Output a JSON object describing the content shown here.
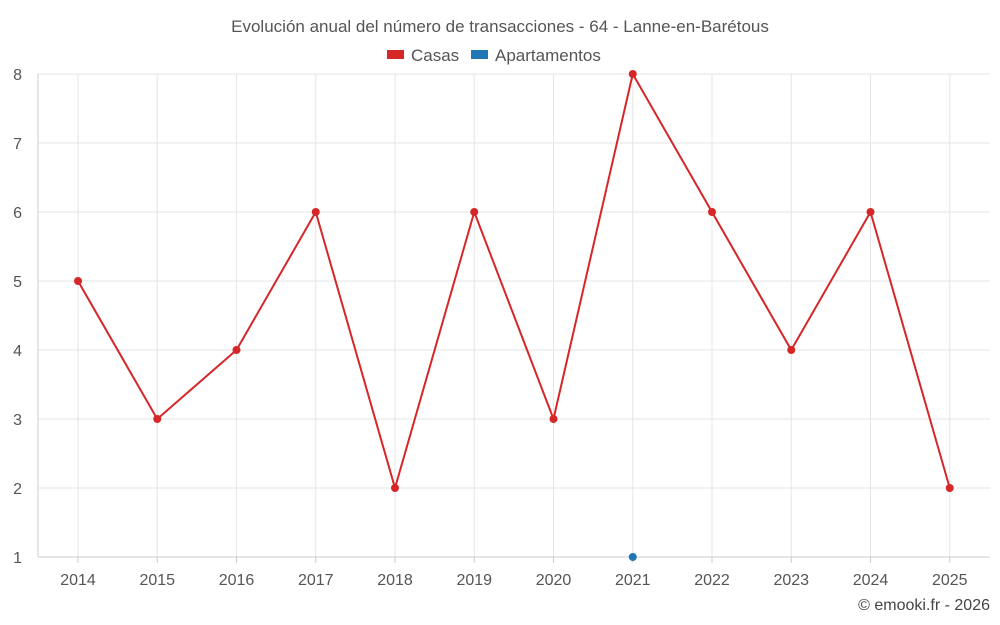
{
  "chart_data": {
    "type": "line",
    "title": "Evolución anual del número de transacciones - 64 - Lanne-en-Barétous",
    "categories": [
      "2014",
      "2015",
      "2016",
      "2017",
      "2018",
      "2019",
      "2020",
      "2021",
      "2022",
      "2023",
      "2024",
      "2025"
    ],
    "series": [
      {
        "name": "Casas",
        "color": "#d62728",
        "values": [
          5,
          3,
          4,
          6,
          2,
          6,
          3,
          8,
          6,
          4,
          6,
          2
        ]
      },
      {
        "name": "Apartamentos",
        "color": "#1f77b4",
        "values": [
          null,
          null,
          null,
          null,
          null,
          null,
          null,
          1,
          null,
          null,
          null,
          null
        ]
      }
    ],
    "y_ticks": [
      1,
      2,
      3,
      4,
      5,
      6,
      7,
      8
    ],
    "ylim": [
      1,
      8
    ],
    "grid": true,
    "legend_position": "top-center",
    "xlabel": "",
    "ylabel": ""
  },
  "credit": "© emooki.fr - 2026"
}
